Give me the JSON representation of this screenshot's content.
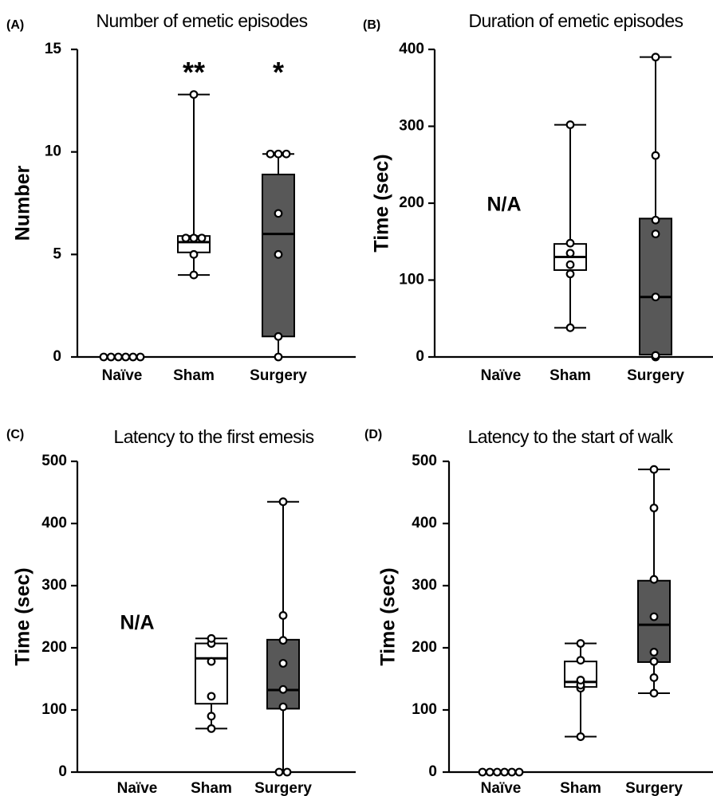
{
  "chart_data": [
    {
      "panel": "(A)",
      "type": "box",
      "title": "Number of emetic episodes",
      "ylabel": "Number",
      "ylim": [
        0,
        15
      ],
      "yticks": [
        0,
        5,
        10,
        15
      ],
      "categories": [
        "Naïve",
        "Sham",
        "Surgery"
      ],
      "groups": [
        {
          "name": "Naïve",
          "fill": "none",
          "points": [
            0,
            0,
            0,
            0,
            0,
            0
          ]
        },
        {
          "name": "Sham",
          "fill": "white",
          "min": 4,
          "q1": 5.1,
          "median": 5.6,
          "q3": 5.9,
          "max": 12.8,
          "points": [
            4,
            5,
            5.8,
            5.8,
            5.8,
            12.8
          ],
          "significance": "**"
        },
        {
          "name": "Surgery",
          "fill": "gray",
          "min": 0,
          "q1": 1,
          "median": 6,
          "q3": 8.9,
          "max": 9.9,
          "points": [
            0,
            1,
            5,
            7,
            9.9,
            9.9,
            9.9
          ],
          "significance": "*"
        }
      ]
    },
    {
      "panel": "(B)",
      "type": "box",
      "title": "Duration of emetic episodes",
      "ylabel": "Time (sec)",
      "ylim": [
        0,
        400
      ],
      "yticks": [
        0,
        100,
        200,
        300,
        400
      ],
      "categories": [
        "Naïve",
        "Sham",
        "Surgery"
      ],
      "annotation": "N/A",
      "groups": [
        {
          "name": "Naïve",
          "fill": "none",
          "points": []
        },
        {
          "name": "Sham",
          "fill": "white",
          "min": 38,
          "q1": 113,
          "median": 130,
          "q3": 147,
          "max": 302,
          "points": [
            38,
            108,
            120,
            135,
            148,
            302
          ]
        },
        {
          "name": "Surgery",
          "fill": "gray",
          "min": 0,
          "q1": 3,
          "median": 78,
          "q3": 180,
          "max": 390,
          "points": [
            0,
            2,
            78,
            160,
            178,
            262,
            390
          ]
        }
      ]
    },
    {
      "panel": "(C)",
      "type": "box",
      "title": "Latency to the first emesis",
      "ylabel": "Time (sec)",
      "ylim": [
        0,
        500
      ],
      "yticks": [
        0,
        100,
        200,
        300,
        400,
        500
      ],
      "categories": [
        "Naïve",
        "Sham",
        "Surgery"
      ],
      "annotation": "N/A",
      "groups": [
        {
          "name": "Naïve",
          "fill": "none",
          "points": []
        },
        {
          "name": "Sham",
          "fill": "white",
          "min": 70,
          "q1": 110,
          "median": 183,
          "q3": 207,
          "max": 215,
          "points": [
            70,
            90,
            122,
            178,
            207,
            215
          ]
        },
        {
          "name": "Surgery",
          "fill": "gray",
          "min": 0,
          "q1": 102,
          "median": 132,
          "q3": 213,
          "max": 435,
          "points": [
            0,
            0,
            105,
            133,
            175,
            212,
            252,
            435
          ]
        }
      ]
    },
    {
      "panel": "(D)",
      "type": "box",
      "title": "Latency to the start of walk",
      "ylabel": "Time (sec)",
      "ylim": [
        0,
        500
      ],
      "yticks": [
        0,
        100,
        200,
        300,
        400,
        500
      ],
      "categories": [
        "Naïve",
        "Sham",
        "Surgery"
      ],
      "groups": [
        {
          "name": "Naïve",
          "fill": "none",
          "points": [
            0,
            0,
            0,
            0,
            0,
            0
          ]
        },
        {
          "name": "Sham",
          "fill": "white",
          "min": 57,
          "q1": 137,
          "median": 145,
          "q3": 178,
          "max": 207,
          "points": [
            57,
            135,
            140,
            148,
            180,
            207
          ]
        },
        {
          "name": "Surgery",
          "fill": "gray",
          "min": 127,
          "q1": 177,
          "median": 237,
          "q3": 308,
          "max": 487,
          "points": [
            127,
            152,
            178,
            193,
            250,
            310,
            425,
            487
          ]
        }
      ]
    }
  ]
}
